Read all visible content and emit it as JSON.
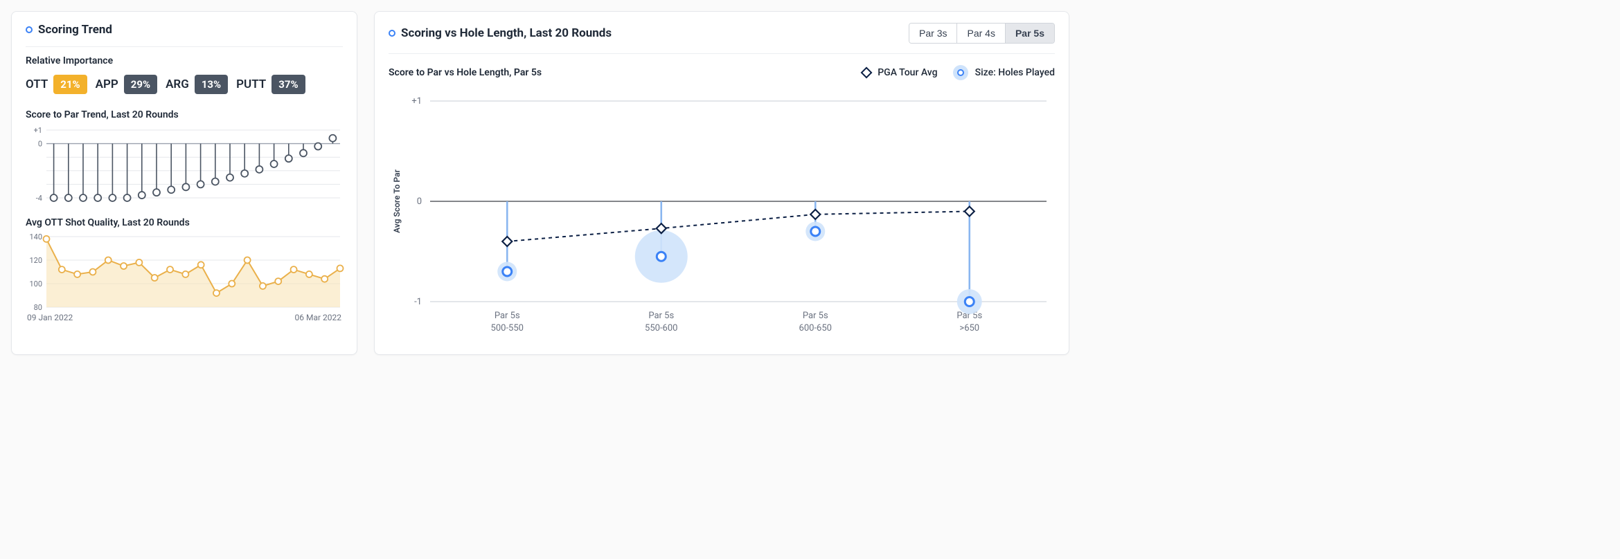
{
  "left": {
    "title": "Scoring Trend",
    "importance_label": "Relative Importance",
    "importance_items": [
      {
        "label": "OTT",
        "value": "21%",
        "badge_bg": "#f3b12b"
      },
      {
        "label": "APP",
        "value": "29%",
        "badge_bg": "#4b5563"
      },
      {
        "label": "ARG",
        "value": "13%",
        "badge_bg": "#4b5563"
      },
      {
        "label": "PUTT",
        "value": "37%",
        "badge_bg": "#4b5563"
      }
    ],
    "trend": {
      "title": "Score to Par Trend, Last 20 Rounds",
      "ylim": [
        -4,
        1
      ],
      "ytick_labels": [
        "+1",
        "0",
        "-4"
      ],
      "values": [
        -4.0,
        -4.0,
        -4.0,
        -4.0,
        -4.0,
        -4.0,
        -3.8,
        -3.6,
        -3.4,
        -3.2,
        -3.0,
        -2.8,
        -2.5,
        -2.2,
        -1.9,
        -1.5,
        -1.1,
        -0.7,
        -0.2,
        0.4
      ],
      "stroke": "#4b5563",
      "fill_marker": "#ffffff",
      "background_grid": "#e5e7eb"
    },
    "ott": {
      "title": "Avg OTT Shot Quality, Last 20 Rounds",
      "ylim": [
        80,
        140
      ],
      "yticks": [
        80,
        100,
        120,
        140
      ],
      "values": [
        138,
        112,
        108,
        110,
        120,
        115,
        118,
        105,
        112,
        108,
        116,
        92,
        100,
        120,
        98,
        102,
        112,
        108,
        104,
        113
      ],
      "stroke": "#eab04a",
      "area_fill": "#f7e2b0",
      "background_grid": "#e5e7eb"
    },
    "date_start": "09 Jan 2022",
    "date_end": "06 Mar 2022"
  },
  "right": {
    "title": "Scoring vs Hole Length, Last 20 Rounds",
    "tabs": [
      "Par 3s",
      "Par 4s",
      "Par 5s"
    ],
    "active_tab": 2,
    "subtitle": "Score to Par vs Hole Length, Par 5s",
    "legend_pga": "PGA Tour Avg",
    "legend_size": "Size: Holes Played",
    "ylabel": "Avg Score To Par",
    "ylim": [
      -1,
      1
    ],
    "yticks": [
      {
        "v": 1,
        "label": "+1"
      },
      {
        "v": 0,
        "label": "0"
      },
      {
        "v": -1,
        "label": "-1"
      }
    ],
    "categories": [
      {
        "line1": "Par 5s",
        "line2": "500-550"
      },
      {
        "line1": "Par 5s",
        "line2": "550-600"
      },
      {
        "line1": "Par 5s",
        "line2": "600-650"
      },
      {
        "line1": "Par 5s",
        "line2": ">650"
      }
    ],
    "player": {
      "values": [
        -0.7,
        -0.55,
        -0.3,
        -1.0
      ],
      "sizes": [
        14,
        38,
        14,
        18
      ]
    },
    "pga": {
      "values": [
        -0.4,
        -0.27,
        -0.13,
        -0.1
      ]
    },
    "colors": {
      "player_line": "#8ab6f0",
      "player_outer": "#cfe3fb",
      "player_ring": "#3b82f6",
      "pga_stroke": "#0b1f44",
      "pga_fill": "#ffffff",
      "grid": "#c7cdd4",
      "axis": "#3a3f45",
      "ticktext": "#6b7280"
    }
  }
}
